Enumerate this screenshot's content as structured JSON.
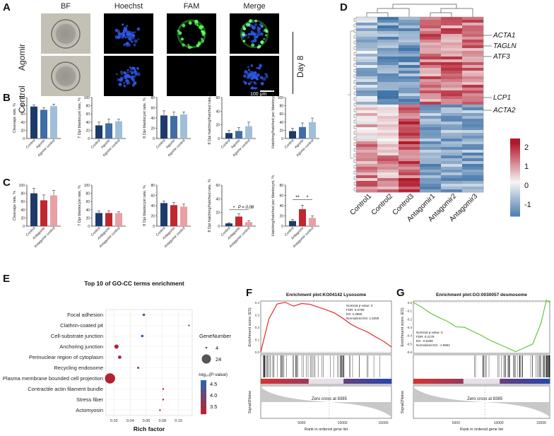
{
  "panels": {
    "A": "A",
    "B": "B",
    "C": "C",
    "D": "D",
    "E": "E",
    "F": "F",
    "G": "G"
  },
  "panel_a": {
    "columns": [
      "BF",
      "Hoechst",
      "FAM",
      "Merge"
    ],
    "rows": [
      "Agomir",
      "Control"
    ],
    "side_label": "Day 8",
    "scale_bar": "100 μm"
  },
  "chart_data": [
    {
      "id": "B1",
      "type": "bar",
      "ylabel": "Cleavage rate, %",
      "categories": [
        "Control",
        "Agomir",
        "Agomir control"
      ],
      "values": [
        78,
        70,
        79
      ],
      "errors": [
        4,
        5,
        5
      ],
      "ylim": [
        0,
        100
      ],
      "yticks": [
        0,
        20,
        40,
        60,
        80,
        100
      ]
    },
    {
      "id": "B2",
      "type": "bar",
      "ylabel": "7 Dpi blastocyst rate, %",
      "categories": [
        "Control",
        "Agomir",
        "Agomir control"
      ],
      "values": [
        32,
        37,
        42
      ],
      "errors": [
        8,
        10,
        5
      ],
      "ylim": [
        0,
        100
      ],
      "yticks": [
        0,
        20,
        40,
        60,
        80,
        100
      ]
    },
    {
      "id": "B3",
      "type": "bar",
      "ylabel": "8 Dpi blastocyst rate, %",
      "categories": [
        "Control",
        "Agomir",
        "Agomir control"
      ],
      "values": [
        45,
        44,
        47
      ],
      "errors": [
        9,
        8,
        5
      ],
      "ylim": [
        0,
        80
      ],
      "yticks": [
        0,
        20,
        40,
        60,
        80
      ]
    },
    {
      "id": "B4",
      "type": "bar",
      "ylabel": "8 Dpi hatching/hatched rate, %",
      "categories": [
        "Control",
        "Agomir",
        "Agomir control"
      ],
      "values": [
        8,
        11,
        18
      ],
      "errors": [
        4,
        5,
        6
      ],
      "ylim": [
        0,
        60
      ],
      "yticks": [
        0,
        20,
        40,
        60
      ]
    },
    {
      "id": "B5",
      "type": "bar",
      "ylabel": "Hatching/hatched per blastocyst, %",
      "categories": [
        "Control",
        "Agomir",
        "Agomir control"
      ],
      "values": [
        18,
        28,
        40
      ],
      "errors": [
        7,
        10,
        10
      ],
      "ylim": [
        0,
        100
      ],
      "yticks": [
        0,
        20,
        40,
        60,
        80,
        100
      ]
    },
    {
      "id": "C1",
      "type": "bar",
      "ylabel": "Cleavage rate, %",
      "categories": [
        "Control",
        "Antagomir",
        "Antagomir control"
      ],
      "values": [
        80,
        63,
        75
      ],
      "errors": [
        12,
        13,
        12
      ],
      "ylim": [
        0,
        100
      ],
      "yticks": [
        0,
        20,
        40,
        60,
        80,
        100
      ]
    },
    {
      "id": "C2",
      "type": "bar",
      "ylabel": "7 Dpi blastocyst rate, %",
      "categories": [
        "Control",
        "Antagomir",
        "Antagomir control"
      ],
      "values": [
        32,
        32,
        32
      ],
      "errors": [
        5,
        6,
        3
      ],
      "ylim": [
        0,
        100
      ],
      "yticks": [
        0,
        20,
        40,
        60,
        80,
        100
      ]
    },
    {
      "id": "C3",
      "type": "bar",
      "ylabel": "8 Dpi blastocyst rate, %",
      "categories": [
        "Control",
        "Antagomir",
        "Antagomir control"
      ],
      "values": [
        45,
        41,
        38
      ],
      "errors": [
        4,
        5,
        5
      ],
      "ylim": [
        0,
        80
      ],
      "yticks": [
        0,
        20,
        40,
        60,
        80
      ]
    },
    {
      "id": "C4",
      "type": "bar",
      "ylabel": "8 Dpi hatching/hatched rate, %",
      "categories": [
        "Control",
        "Antagomir",
        "Antagomir control"
      ],
      "values": [
        4,
        14,
        6
      ],
      "errors": [
        1,
        4,
        2
      ],
      "ylim": [
        0,
        60
      ],
      "yticks": [
        0,
        20,
        40,
        60
      ],
      "annotations": [
        "*",
        "P = 0.08"
      ]
    },
    {
      "id": "C5",
      "type": "bar",
      "ylabel": "Hatching/hatched per blastocyst, %",
      "categories": [
        "Control",
        "Antagomir",
        "Antagomir control"
      ],
      "values": [
        10,
        33,
        16
      ],
      "errors": [
        3,
        8,
        4
      ],
      "ylim": [
        0,
        80
      ],
      "yticks": [
        0,
        20,
        40,
        60,
        80
      ],
      "annotations": [
        "**",
        "*"
      ]
    },
    {
      "id": "D",
      "type": "heatmap",
      "columns": [
        "Control1",
        "Control2",
        "Control3",
        "Antagomir1",
        "Antagomir2",
        "Antagomir3"
      ],
      "genes": [
        "ACTA1",
        "TAGLN",
        "ATF3",
        "LCP1",
        "ACTA2"
      ],
      "legend_ticks": [
        "2",
        "1",
        "0",
        "-1"
      ],
      "range": [
        -2,
        2
      ]
    },
    {
      "id": "E",
      "type": "scatter",
      "title": "Top 10 of GO-CC terms enrichment",
      "xlabel": "Rich factor",
      "xticks": [
        0.02,
        0.04,
        0.06,
        0.08,
        0.1
      ],
      "terms": [
        "Focal adhesion",
        "Clathrin-coated pit",
        "Cell-substrate junction",
        "Anchoring junction",
        "Perinuclear region of cytoplasm",
        "Recycling endosome",
        "Plasma membrane bounded cell projection",
        "Contractile actin filament bundle",
        "Stress fiber",
        "Actomyosin"
      ],
      "rich_factor": [
        0.057,
        0.113,
        0.055,
        0.023,
        0.027,
        0.05,
        0.015,
        0.081,
        0.081,
        0.077
      ],
      "gene_number": [
        6,
        4,
        6,
        10,
        8,
        5,
        24,
        4,
        4,
        4
      ],
      "neg_log10_p": [
        4.6,
        4.7,
        4.8,
        3.4,
        3.5,
        3.6,
        3.3,
        3.2,
        3.2,
        3.2
      ],
      "size_legend_title": "GeneNumber",
      "size_legend": [
        "4",
        "24"
      ],
      "color_legend_title": "-log₁₀(P-value)",
      "color_legend": [
        "4.5",
        "4.0",
        "3.5"
      ]
    },
    {
      "id": "F",
      "type": "line",
      "title": "Enrichment plot:KO04142 Lysosome",
      "ylabel": "Enrichment score (ES)",
      "yticks": [
        "0.4",
        "0.3",
        "0.2",
        "0.1",
        "0.0"
      ],
      "stats": [
        "Nominal p-value: 0",
        "FDR: 0.0798",
        "ES: 0.3980",
        "Normalized ES: 1.5259"
      ],
      "zero_cross": "Zero cross at 8385",
      "ylabel2": "Signal2Noise",
      "xlabel": "Rank in ordered gene list",
      "xticks": [
        "5000",
        "10000",
        "15000"
      ],
      "x": [
        0,
        1000,
        2000,
        3000,
        4000,
        5000,
        6000,
        7000,
        8000,
        9000,
        10000,
        11000,
        12000,
        13000,
        14000,
        15000,
        16000
      ],
      "es": [
        0.0,
        0.26,
        0.38,
        0.4,
        0.37,
        0.39,
        0.38,
        0.36,
        0.34,
        0.31,
        0.27,
        0.23,
        0.2,
        0.17,
        0.13,
        0.08,
        0.04
      ]
    },
    {
      "id": "G",
      "type": "line",
      "title": "Enrichment plot:GO:0030057 desmosome",
      "ylabel": "Enrichment score (ES)",
      "yticks": [
        "0.0",
        "-0.1",
        "-0.2",
        "-0.3",
        "-0.4",
        "-0.5",
        "-0.6"
      ],
      "stats": [
        "Nominal p-value: 0",
        "FDR: 0.2178",
        "ES: -0.6286",
        "Normalized ES: -1.9862"
      ],
      "zero_cross": "Zero cross at 8385",
      "ylabel2": "Signal2Noise",
      "xlabel": "Rank in ordered gene list",
      "xticks": [
        "5000",
        "10000",
        "15000"
      ],
      "x": [
        0,
        1000,
        2000,
        3000,
        4000,
        5000,
        6000,
        7000,
        8000,
        9000,
        10000,
        11000,
        12000,
        13000,
        14000,
        15000,
        15600,
        16000
      ],
      "es": [
        0.0,
        -0.06,
        -0.12,
        -0.18,
        -0.24,
        -0.29,
        -0.3,
        -0.35,
        -0.41,
        -0.45,
        -0.5,
        -0.55,
        -0.6,
        -0.56,
        -0.5,
        -0.25,
        0.02,
        0.0
      ]
    }
  ]
}
